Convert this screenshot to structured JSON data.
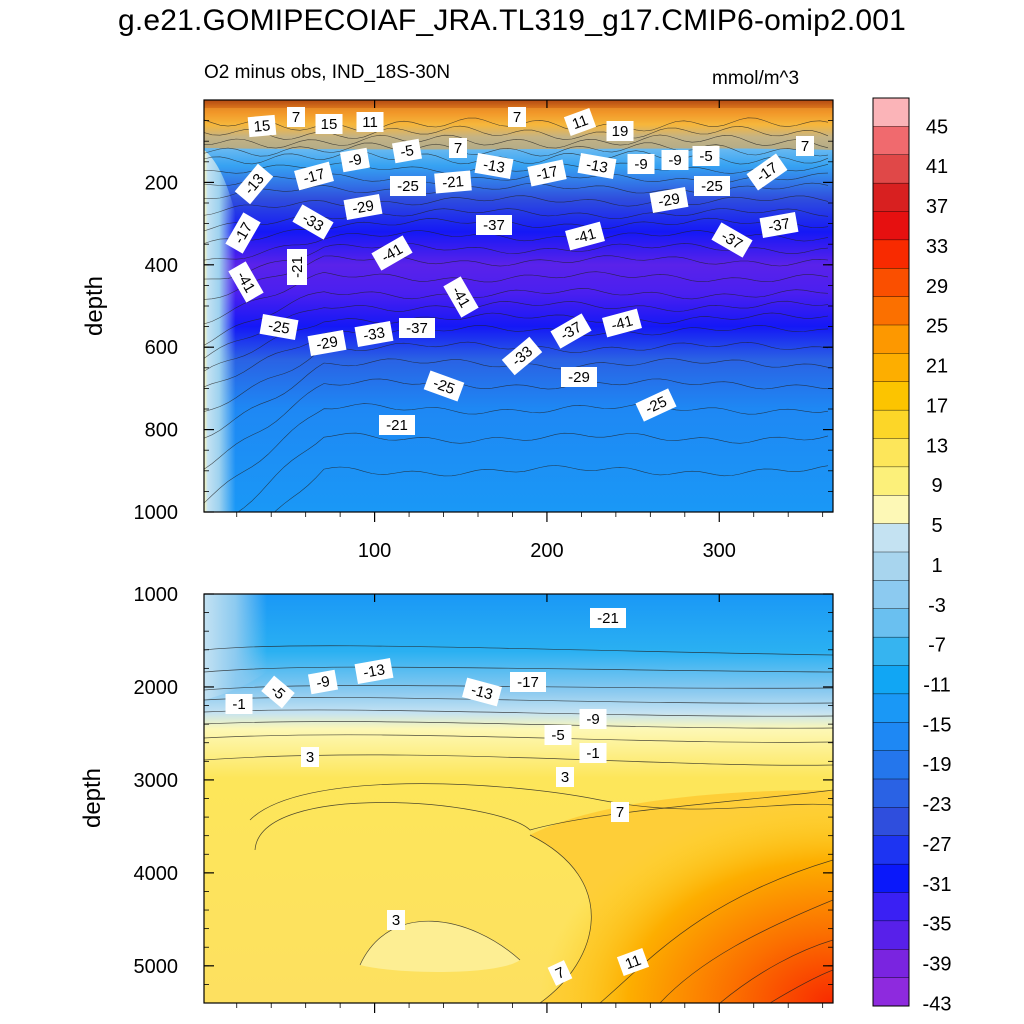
{
  "title": "g.e21.GOMIPECOIAF_JRA.TL319_g17.CMIP6-omip2.001",
  "chart_data": {
    "type": "contour",
    "subtitle": "O2 minus obs, IND_18S-30N",
    "units": "mmol/m^3",
    "x_ticks": [
      "100",
      "200",
      "300"
    ],
    "x_range": [
      1,
      366
    ],
    "top_panel": {
      "ylabel": "depth",
      "depth_range": [
        0,
        1000
      ],
      "y_ticks": [
        "200",
        "400",
        "600",
        "800",
        "1000"
      ],
      "contour_labels": [
        "15",
        "7",
        "15",
        "11",
        "7",
        "11",
        "19",
        "-9",
        "-5",
        "7",
        "-13",
        "-17",
        "-13",
        "-9",
        "-9",
        "-5",
        "7",
        "-13",
        "-17",
        "-25",
        "-21",
        "-17",
        "-29",
        "-25",
        "-33",
        "-29",
        "-17",
        "-37",
        "-41",
        "-41",
        "-37",
        "-41",
        "-21",
        "-37",
        "-41",
        "-25",
        "-29",
        "-33",
        "-37",
        "-37",
        "-41",
        "-33",
        "-29",
        "-25",
        "-25",
        "-21"
      ]
    },
    "bottom_panel": {
      "ylabel": "depth",
      "depth_range": [
        1000,
        5400
      ],
      "y_ticks": [
        "1000",
        "2000",
        "3000",
        "4000",
        "5000"
      ],
      "contour_labels": [
        "-21",
        "-13",
        "-9",
        "-5",
        "-1",
        "-13",
        "-17",
        "-9",
        "-5",
        "-1",
        "3",
        "3",
        "7",
        "3",
        "7",
        "11"
      ]
    },
    "colorbar": {
      "levels": [
        45,
        41,
        37,
        33,
        29,
        25,
        21,
        17,
        13,
        9,
        5,
        1,
        -3,
        -7,
        -11,
        -15,
        -19,
        -23,
        -27,
        -31,
        -35,
        -39,
        -43
      ],
      "level_labels": [
        "45",
        "41",
        "37",
        "33",
        "29",
        "25",
        "21",
        "17",
        "13",
        "9",
        "5",
        "1",
        "-3",
        "-7",
        "-11",
        "-15",
        "-19",
        "-23",
        "-27",
        "-31",
        "-35",
        "-39",
        "-43"
      ],
      "colors": [
        "#fbb4b8",
        "#f06a6e",
        "#e04848",
        "#d82020",
        "#e61010",
        "#f82a00",
        "#fa4f00",
        "#fb7000",
        "#fd9800",
        "#fdae00",
        "#fcc400",
        "#fcd628",
        "#fde65a",
        "#fcf07a",
        "#fdf8b6",
        "#c4e2f2",
        "#a8d5ee",
        "#8ccaf0",
        "#6ac0f0",
        "#36b4f0",
        "#11a6f4",
        "#1a98f6",
        "#1e88f4",
        "#2476ec",
        "#2a62e4",
        "#2f4edd",
        "#1d34f2",
        "#0a18fa",
        "#3a20f4",
        "#5820ea",
        "#7a24e0",
        "#8e2ade"
      ]
    }
  }
}
